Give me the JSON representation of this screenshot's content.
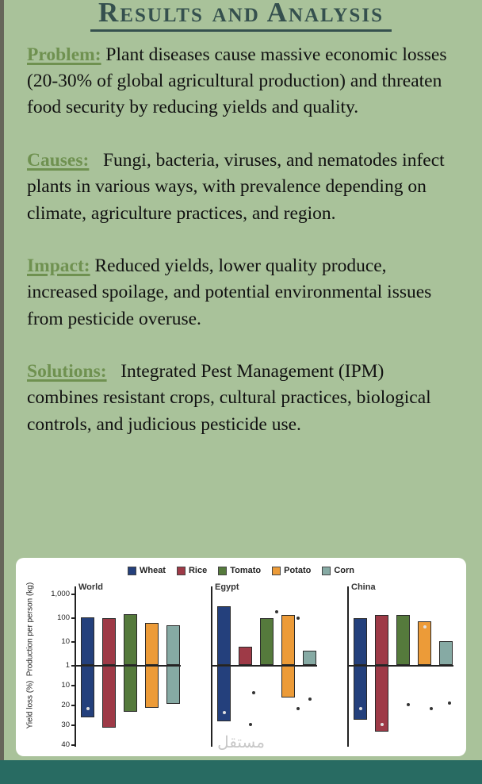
{
  "page": {
    "title": "Results and Analysis",
    "colors": {
      "background": "#a9c29a",
      "bottom_bar": "#286b62",
      "title": "#35504e",
      "heading": "#6f9150",
      "body_text": "#111111",
      "card_background": "#ffffff",
      "edge": "#66665a"
    }
  },
  "sections": [
    {
      "heading": "Problem:",
      "text": " Plant diseases cause massive economic losses (20-30% of global agricultural production) and threaten food security by reducing yields and quality."
    },
    {
      "heading": "Causes:",
      "text": "  Fungi, bacteria, viruses, and nematodes infect plants in various ways, with prevalence depending on climate, agriculture practices, and region."
    },
    {
      "heading": "Impact:",
      "text": " Reduced yields, lower quality produce, increased spoilage, and potential environmental issues from pesticide overuse."
    },
    {
      "heading": "Solutions:",
      "text": "  Integrated Pest Management (IPM) combines resistant crops, cultural practices, biological controls, and judicious pesticide use."
    }
  ],
  "chart_data": {
    "type": "bar",
    "title": "",
    "legend": [
      "Wheat",
      "Rice",
      "Tomato",
      "Potato",
      "Corn"
    ],
    "colors": [
      "#24407c",
      "#9e3a47",
      "#557a3c",
      "#ec9b38",
      "#86aaa4"
    ],
    "top_axis": {
      "label": "Production per person (kg)",
      "scale": "log",
      "ticks": [
        "1,000",
        "100",
        "10",
        "1"
      ],
      "range": [
        1,
        1000
      ]
    },
    "bottom_axis": {
      "label": "Yield loss (%)",
      "ticks": [
        "10",
        "20",
        "30",
        "40"
      ],
      "range": [
        0,
        40
      ]
    },
    "watermark": "مستقل",
    "panels": [
      {
        "title": "World",
        "production": [
          100,
          95,
          135,
          60,
          45
        ],
        "loss": [
          26,
          31,
          23,
          21,
          19
        ],
        "dots": [
          {
            "series": 0,
            "axis": "loss",
            "value": 22,
            "dx": 0,
            "style": "light"
          }
        ]
      },
      {
        "title": "Egypt",
        "production": [
          290,
          6,
          95,
          130,
          4
        ],
        "loss": [
          28,
          0,
          0,
          16,
          0
        ],
        "dots": [
          {
            "series": 0,
            "axis": "loss",
            "value": 24,
            "dx": 0,
            "style": "light"
          },
          {
            "series": 2,
            "axis": "production",
            "value": 170,
            "dx": 12,
            "style": "dark"
          },
          {
            "series": 3,
            "axis": "production",
            "value": 90,
            "dx": 12,
            "style": "dark"
          },
          {
            "series": 1,
            "axis": "loss",
            "value": 14,
            "dx": 10,
            "style": "dark"
          },
          {
            "series": 1,
            "axis": "loss",
            "value": 30,
            "dx": 6,
            "style": "dark"
          },
          {
            "series": 3,
            "axis": "loss",
            "value": 22,
            "dx": 12,
            "style": "dark"
          },
          {
            "series": 4,
            "axis": "loss",
            "value": 17,
            "dx": 0,
            "style": "dark"
          }
        ]
      },
      {
        "title": "China",
        "production": [
          95,
          130,
          130,
          70,
          10
        ],
        "loss": [
          27,
          33,
          0,
          0,
          0
        ],
        "dots": [
          {
            "series": 0,
            "axis": "loss",
            "value": 22,
            "dx": 0,
            "style": "light"
          },
          {
            "series": 1,
            "axis": "loss",
            "value": 30,
            "dx": 0,
            "style": "light"
          },
          {
            "series": 3,
            "axis": "production",
            "value": 40,
            "dx": 0,
            "style": "light"
          },
          {
            "series": 2,
            "axis": "loss",
            "value": 20,
            "dx": 6,
            "style": "dark"
          },
          {
            "series": 3,
            "axis": "loss",
            "value": 22,
            "dx": 8,
            "style": "dark"
          },
          {
            "series": 4,
            "axis": "loss",
            "value": 19,
            "dx": 4,
            "style": "dark"
          }
        ]
      }
    ]
  }
}
